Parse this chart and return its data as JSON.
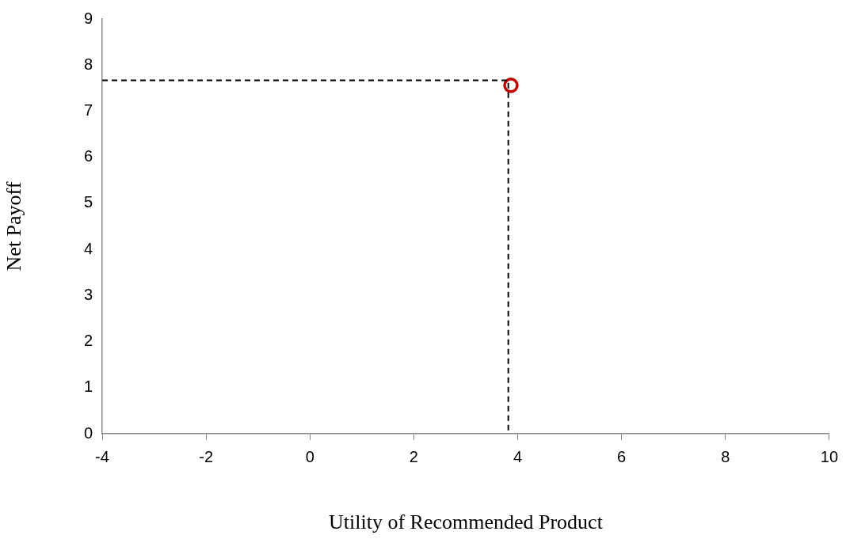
{
  "chart_data": {
    "type": "scatter",
    "xlabel": "Utility of Recommended Product",
    "ylabel": "Net Payoff",
    "xlim": [
      -4,
      10
    ],
    "xticks": [
      -4,
      -2,
      0,
      2,
      4,
      6,
      8,
      10
    ],
    "ylim": [
      0,
      9
    ],
    "yticks": [
      0,
      1,
      2,
      3,
      4,
      5,
      6,
      7,
      8,
      9
    ],
    "marker": "circle",
    "series": [
      {
        "type": "line",
        "color": "#000000",
        "line_style": "dashed",
        "marker": "none",
        "x": [
          -4,
          3.82,
          3.82
        ],
        "values": [
          7.67,
          7.67,
          0
        ]
      },
      {
        "type": "scatter",
        "color": "#c00000",
        "x": [
          3.87
        ],
        "values": [
          7.56
        ]
      }
    ]
  }
}
